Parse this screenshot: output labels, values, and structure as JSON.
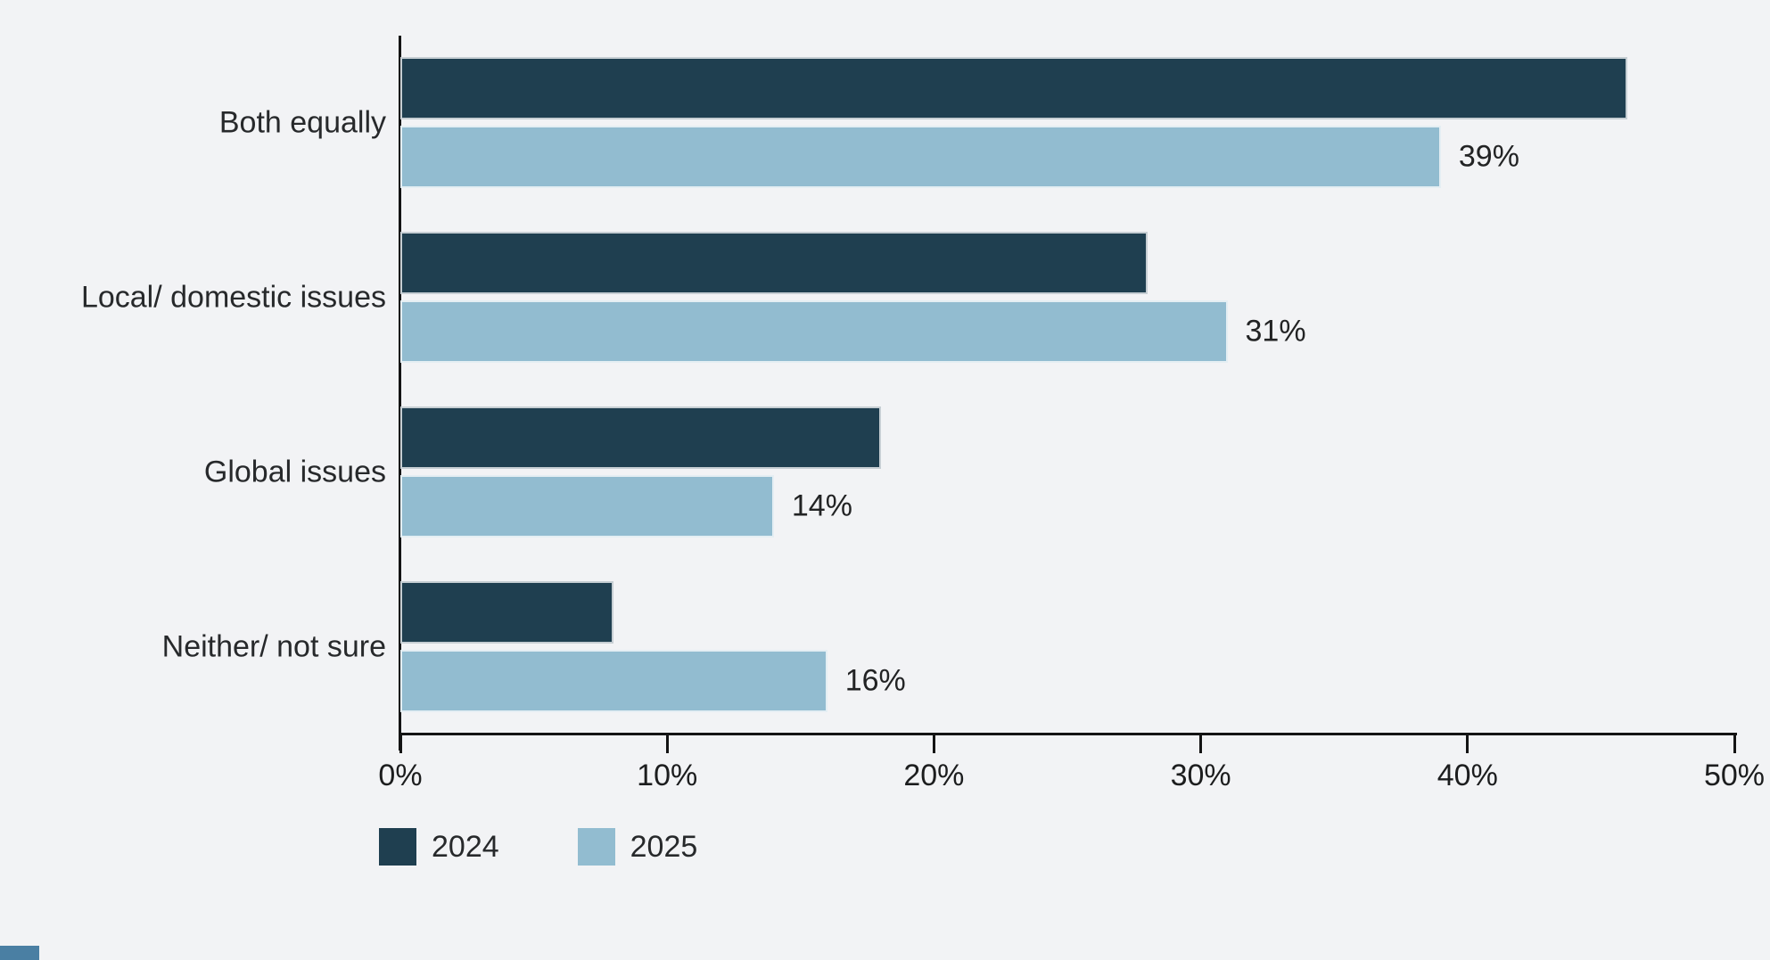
{
  "chart_data": {
    "type": "bar",
    "orientation": "horizontal",
    "title": "",
    "xlabel": "",
    "ylabel": "",
    "categories": [
      "Both equally",
      "Local/ domestic issues",
      "Global issues",
      "Neither/ not sure"
    ],
    "series": [
      {
        "name": "2024",
        "color": "#1F3F50",
        "values": [
          46,
          28,
          18,
          8
        ],
        "data_labels": [
          "",
          "",
          "",
          ""
        ]
      },
      {
        "name": "2025",
        "color": "#92BCD0",
        "values": [
          39,
          31,
          14,
          16
        ],
        "data_labels": [
          "39%",
          "31%",
          "14%",
          "16%"
        ]
      }
    ],
    "xlim": [
      0,
      50
    ],
    "x_tick_values": [
      0,
      10,
      20,
      30,
      40,
      50
    ],
    "x_ticks": [
      "0%",
      "10%",
      "20%",
      "30%",
      "40%",
      "50%"
    ],
    "grid": false,
    "legend_position": "bottom-left"
  },
  "legend": {
    "items": [
      {
        "label": "2024",
        "color": "#1F3F50"
      },
      {
        "label": "2025",
        "color": "#92BCD0"
      }
    ]
  },
  "colors": {
    "background": "#F2F3F5",
    "axis": "#141414",
    "text": "#27292B",
    "bar_2024": "#1F3F50",
    "bar_2025": "#92BCD0",
    "bar_stroke": "#FFFFFF",
    "corner_accent": "#4A7FA3"
  }
}
